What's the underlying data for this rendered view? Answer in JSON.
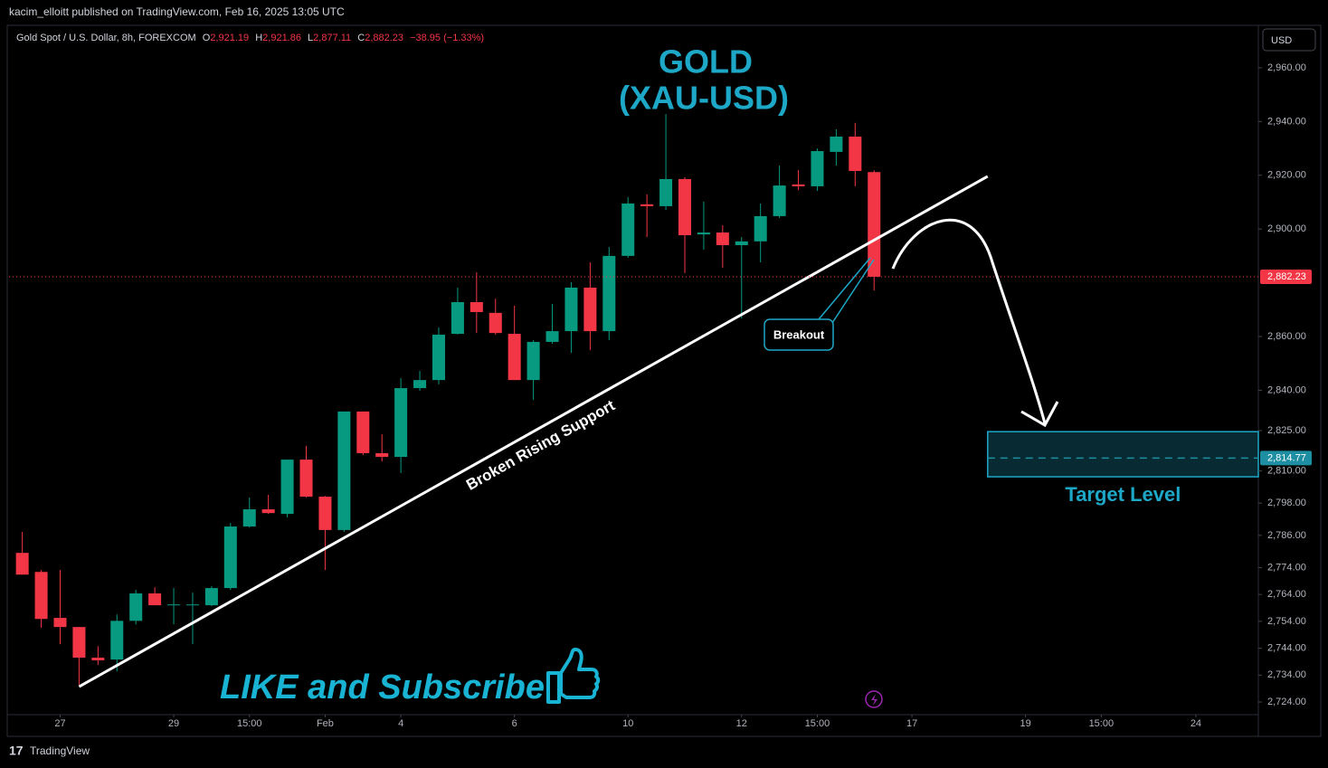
{
  "header": "kacim_elloitt published on TradingView.com, Feb 16, 2025 13:05 UTC",
  "footer": "TradingView",
  "chart_data": {
    "type": "candlestick",
    "title": [
      "GOLD",
      "(XAU-USD)"
    ],
    "symbol": "Gold Spot / U.S. Dollar, 8h, FOREXCOM",
    "ohlc_legend": [
      {
        "label": "O",
        "value": "2,921.19"
      },
      {
        "label": "H",
        "value": "2,921.86"
      },
      {
        "label": "L",
        "value": "2,877.11"
      },
      {
        "label": "C",
        "value": "2,882.23"
      }
    ],
    "change": "−38.95 (−1.33%)",
    "currency": "USD",
    "up_color": "#089981",
    "down_color": "#f23645",
    "open": [
      2779.5,
      2772.4,
      2755.3,
      2751.9,
      2740.5,
      2739.8,
      2754.2,
      2764.4,
      2760.0,
      2760.0,
      2760.0,
      2766.4,
      2789.3,
      2795.7,
      2794.0,
      2814.2,
      2800.4,
      2788.0,
      2832.1,
      2816.6,
      2815.2,
      2840.8,
      2843.8,
      2861.0,
      2872.8,
      2868.8,
      2861.0,
      2843.8,
      2858.0,
      2862.0,
      2878.2,
      2862.0,
      2890.0,
      2909.2,
      2908.5,
      2918.6,
      2898.0,
      2898.7,
      2894.0,
      2895.4,
      2904.8,
      2916.6,
      2915.9,
      2928.7,
      2934.4,
      2921.19
    ],
    "high": [
      2787.3,
      2773.1,
      2773.1,
      2751.9,
      2744.8,
      2756.6,
      2765.7,
      2766.7,
      2766.4,
      2764.7,
      2767.1,
      2790.6,
      2800.1,
      2801.1,
      2814.2,
      2819.3,
      2800.7,
      2832.1,
      2832.1,
      2823.6,
      2844.5,
      2847.2,
      2863.4,
      2878.2,
      2883.9,
      2874.1,
      2871.5,
      2858.7,
      2872.1,
      2880.2,
      2887.6,
      2893.3,
      2911.9,
      2912.9,
      2942.8,
      2919.3,
      2910.2,
      2901.4,
      2897.0,
      2909.5,
      2923.6,
      2922.0,
      2930.0,
      2937.1,
      2939.5,
      2921.86
    ],
    "low": [
      2771.4,
      2751.6,
      2745.5,
      2730.4,
      2737.8,
      2735.4,
      2752.9,
      2760.0,
      2752.9,
      2745.5,
      2759.7,
      2765.7,
      2788.9,
      2794.0,
      2792.7,
      2800.1,
      2773.1,
      2787.3,
      2815.9,
      2813.5,
      2809.2,
      2839.8,
      2842.2,
      2860.7,
      2861.3,
      2860.7,
      2843.8,
      2836.4,
      2857.3,
      2853.9,
      2854.9,
      2858.7,
      2889.3,
      2897.0,
      2907.1,
      2883.6,
      2892.3,
      2885.6,
      2866.7,
      2887.6,
      2904.1,
      2914.5,
      2914.2,
      2923.6,
      2915.9,
      2877.11
    ],
    "close": [
      2771.4,
      2754.9,
      2751.9,
      2740.5,
      2739.5,
      2754.2,
      2764.4,
      2760.0,
      2760.3,
      2760.3,
      2766.4,
      2789.3,
      2795.7,
      2794.3,
      2814.2,
      2800.4,
      2788.0,
      2832.1,
      2816.6,
      2815.2,
      2840.8,
      2843.8,
      2860.7,
      2872.8,
      2869.1,
      2861.3,
      2843.8,
      2858.0,
      2862.0,
      2878.2,
      2862.0,
      2890.0,
      2909.5,
      2908.5,
      2918.6,
      2897.7,
      2898.7,
      2894.0,
      2895.4,
      2904.8,
      2916.2,
      2915.9,
      2929.0,
      2934.4,
      2921.6,
      2882.23
    ],
    "xlim": [
      -0.7,
      65.3
    ],
    "xticks": [
      {
        "value": 2,
        "label": "27"
      },
      {
        "value": 8,
        "label": "29"
      },
      {
        "value": 12,
        "label": "15:00"
      },
      {
        "value": 16,
        "label": "Feb"
      },
      {
        "value": 20,
        "label": "4"
      },
      {
        "value": 26,
        "label": "6"
      },
      {
        "value": 32,
        "label": "10"
      },
      {
        "value": 38,
        "label": "12"
      },
      {
        "value": 42,
        "label": "15:00"
      },
      {
        "value": 47,
        "label": "17"
      },
      {
        "value": 53,
        "label": "19"
      },
      {
        "value": 57,
        "label": "15:00"
      },
      {
        "value": 62,
        "label": "24"
      }
    ],
    "ylim": [
      2719.3,
      2975.8
    ],
    "yticks": [
      {
        "value": 2960,
        "label": "2,960.00"
      },
      {
        "value": 2940,
        "label": "2,940.00"
      },
      {
        "value": 2920,
        "label": "2,920.00"
      },
      {
        "value": 2900,
        "label": "2,900.00"
      },
      {
        "value": 2860,
        "label": "2,860.00"
      },
      {
        "value": 2840,
        "label": "2,840.00"
      },
      {
        "value": 2825,
        "label": "2,825.00"
      },
      {
        "value": 2810,
        "label": "2,810.00"
      },
      {
        "value": 2798,
        "label": "2,798.00"
      },
      {
        "value": 2786,
        "label": "2,786.00"
      },
      {
        "value": 2774,
        "label": "2,774.00"
      },
      {
        "value": 2764,
        "label": "2,764.00"
      },
      {
        "value": 2754,
        "label": "2,754.00"
      },
      {
        "value": 2744,
        "label": "2,744.00"
      },
      {
        "value": 2734,
        "label": "2,734.00"
      },
      {
        "value": 2724,
        "label": "2,724.00"
      }
    ],
    "grid": false,
    "price_labels": [
      {
        "value": 2882.23,
        "label": "2,882.23",
        "color": "#f23645"
      },
      {
        "value": 2814.77,
        "label": "2,814.77",
        "color": "#1e8fa3"
      }
    ],
    "support_line": {
      "x": [
        3,
        51
      ],
      "y": [
        2729.7,
        2919.6
      ],
      "label": "Broken Rising Support"
    },
    "target_zone": {
      "x_start": 51,
      "y": [
        2807.8,
        2824.6
      ],
      "label": "Target Level"
    },
    "annotations": [
      "Breakout",
      "LIKE and Subscribe"
    ]
  }
}
